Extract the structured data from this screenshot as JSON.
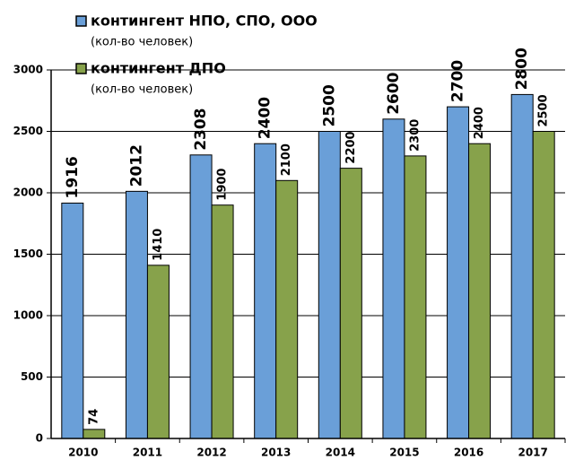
{
  "chart_data": {
    "type": "bar",
    "categories": [
      "2010",
      "2011",
      "2012",
      "2013",
      "2014",
      "2015",
      "2016",
      "2017"
    ],
    "series": [
      {
        "name": "контингент НПО, СПО, ООО",
        "unit": "(кол-во человек)",
        "color": "#6a9fd8",
        "values": [
          1916,
          2012,
          2308,
          2400,
          2500,
          2600,
          2700,
          2800
        ]
      },
      {
        "name": "контингент ДПО",
        "unit": "(кол-во человек)",
        "color": "#87a24b",
        "values": [
          74,
          1410,
          1900,
          2100,
          2200,
          2300,
          2400,
          2500
        ]
      }
    ],
    "ylim": [
      0,
      3000
    ],
    "yticks": [
      0,
      500,
      1000,
      1500,
      2000,
      2500,
      3000
    ],
    "grid": true
  }
}
